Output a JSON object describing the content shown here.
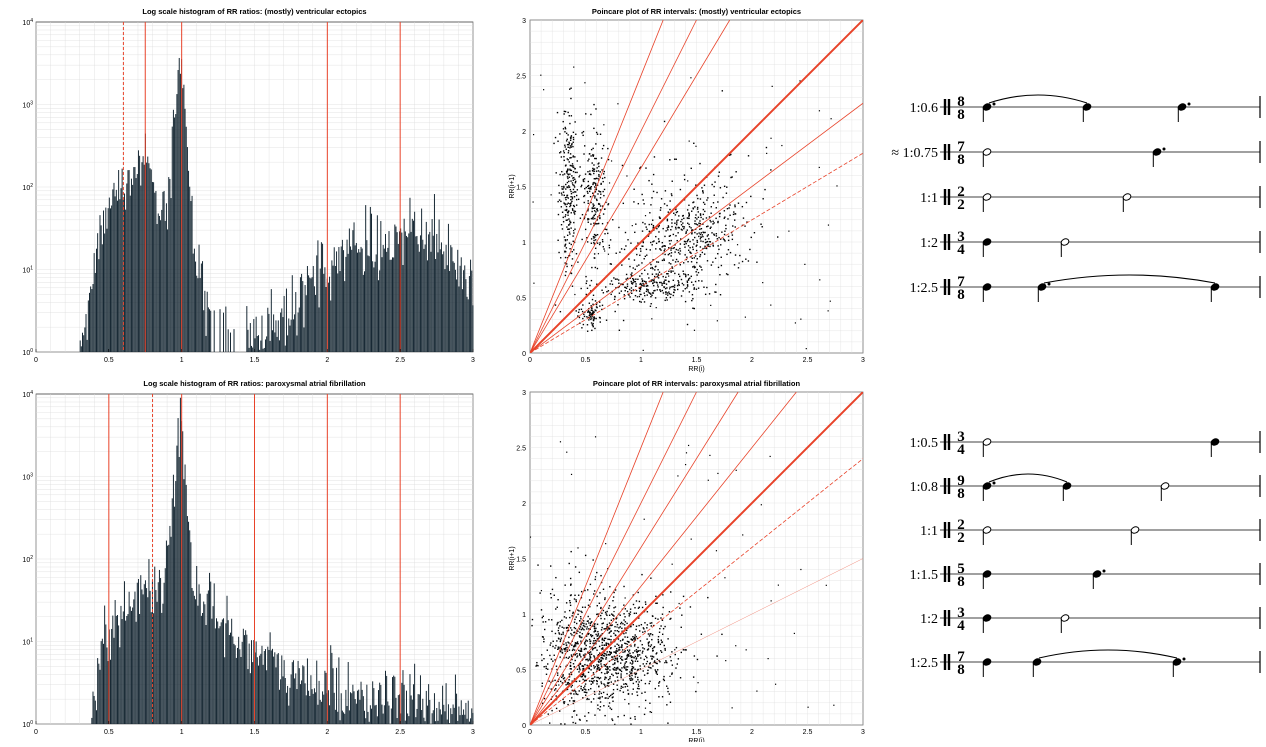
{
  "colors": {
    "bar": "#10222e",
    "ref": "#e8432a",
    "dot": "#000000",
    "grid": "#dcdcdc"
  },
  "chart_data": [
    {
      "type": "bar",
      "title": "Log scale histogram of RR ratios: (mostly) ventricular ectopics",
      "xlabel": "",
      "ylabel": "",
      "xlim": [
        0,
        3
      ],
      "ylog": true,
      "ylim_exp": [
        0,
        4
      ],
      "xticks": [
        "0",
        "0.5",
        "1",
        "1.5",
        "2",
        "2.5",
        "3"
      ],
      "yticks": [
        "10^0",
        "10^1",
        "10^2",
        "10^3",
        "10^4"
      ],
      "ref_lines": [
        {
          "x": 0.6,
          "style": "dashed"
        },
        {
          "x": 0.75,
          "style": "solid"
        },
        {
          "x": 1.0,
          "style": "solid"
        },
        {
          "x": 2.0,
          "style": "solid"
        },
        {
          "x": 2.5,
          "style": "solid"
        }
      ],
      "envelope": [
        [
          0.3,
          1
        ],
        [
          0.35,
          3
        ],
        [
          0.4,
          10
        ],
        [
          0.45,
          40
        ],
        [
          0.5,
          90
        ],
        [
          0.55,
          130
        ],
        [
          0.6,
          110
        ],
        [
          0.65,
          100
        ],
        [
          0.7,
          200
        ],
        [
          0.75,
          250
        ],
        [
          0.8,
          150
        ],
        [
          0.85,
          50
        ],
        [
          0.9,
          60
        ],
        [
          0.93,
          300
        ],
        [
          0.97,
          1500
        ],
        [
          1.0,
          4000
        ],
        [
          1.03,
          500
        ],
        [
          1.07,
          30
        ],
        [
          1.15,
          5
        ],
        [
          1.2,
          3
        ],
        [
          1.3,
          2
        ],
        [
          1.5,
          1.5
        ],
        [
          1.7,
          2
        ],
        [
          1.8,
          4
        ],
        [
          1.9,
          8
        ],
        [
          2.0,
          12
        ],
        [
          2.1,
          15
        ],
        [
          2.2,
          18
        ],
        [
          2.3,
          20
        ],
        [
          2.4,
          22
        ],
        [
          2.5,
          25
        ],
        [
          2.6,
          30
        ],
        [
          2.7,
          25
        ],
        [
          2.8,
          18
        ],
        [
          2.9,
          10
        ],
        [
          3.0,
          5
        ]
      ],
      "bin_width": 0.008,
      "gap": [
        [
          1.2,
          1.45
        ]
      ]
    },
    {
      "type": "scatter",
      "title": "Poincare plot of RR intervals: (mostly) ventricular ectopics",
      "xlabel": "RR(i)",
      "ylabel": "RR(i+1)",
      "xlim": [
        0,
        3
      ],
      "ylim": [
        0,
        3
      ],
      "xticks": [
        "0",
        "0.5",
        "1",
        "1.5",
        "2",
        "2.5",
        "3"
      ],
      "yticks": [
        "0",
        "0.5",
        "1",
        "1.5",
        "2",
        "2.5",
        "3"
      ],
      "ref_slopes": [
        {
          "slope": 1,
          "style": "thick"
        },
        {
          "slope": 1.667,
          "style": "solid"
        },
        {
          "slope": 2,
          "style": "solid"
        },
        {
          "slope": 2.5,
          "style": "solid"
        },
        {
          "slope": 0.6,
          "style": "dashed"
        },
        {
          "slope": 0.75,
          "style": "solid"
        }
      ],
      "clusters": [
        {
          "cx": 0.35,
          "cy": 1.45,
          "sx": 0.04,
          "sy": 0.35,
          "n": 260
        },
        {
          "cx": 0.58,
          "cy": 1.4,
          "sx": 0.05,
          "sy": 0.3,
          "n": 200
        },
        {
          "cx": 1.4,
          "cy": 1.05,
          "sx": 0.3,
          "sy": 0.2,
          "rot": 0.6,
          "n": 420
        },
        {
          "cx": 1.05,
          "cy": 0.6,
          "sx": 0.25,
          "sy": 0.06,
          "n": 200
        },
        {
          "cx": 0.55,
          "cy": 0.35,
          "sx": 0.05,
          "sy": 0.06,
          "n": 80
        },
        {
          "cx": 1.2,
          "cy": 1.0,
          "sx": 0.4,
          "sy": 0.4,
          "n": 180
        }
      ]
    },
    {
      "type": "bar",
      "title": "Log scale histogram of RR ratios: paroxysmal atrial fibrillation",
      "xlabel": "",
      "ylabel": "",
      "xlim": [
        0,
        3
      ],
      "ylog": true,
      "ylim_exp": [
        0,
        4
      ],
      "xticks": [
        "0",
        "0.5",
        "1",
        "1.5",
        "2",
        "2.5",
        "3"
      ],
      "yticks": [
        "10^0",
        "10^1",
        "10^2",
        "10^3",
        "10^4"
      ],
      "ref_lines": [
        {
          "x": 0.5,
          "style": "solid"
        },
        {
          "x": 0.8,
          "style": "dashed"
        },
        {
          "x": 1.0,
          "style": "solid"
        },
        {
          "x": 1.5,
          "style": "solid"
        },
        {
          "x": 2.0,
          "style": "solid"
        },
        {
          "x": 2.5,
          "style": "solid"
        }
      ],
      "envelope": [
        [
          0.38,
          1
        ],
        [
          0.42,
          5
        ],
        [
          0.5,
          15
        ],
        [
          0.6,
          25
        ],
        [
          0.7,
          35
        ],
        [
          0.78,
          50
        ],
        [
          0.82,
          45
        ],
        [
          0.88,
          60
        ],
        [
          0.93,
          300
        ],
        [
          0.97,
          2500
        ],
        [
          1.0,
          5000
        ],
        [
          1.03,
          800
        ],
        [
          1.07,
          60
        ],
        [
          1.15,
          30
        ],
        [
          1.3,
          15
        ],
        [
          1.5,
          8
        ],
        [
          1.7,
          4
        ],
        [
          1.9,
          3
        ],
        [
          2.0,
          3
        ],
        [
          2.3,
          2
        ],
        [
          2.5,
          2
        ],
        [
          2.8,
          1.5
        ],
        [
          3.0,
          1
        ]
      ],
      "bin_width": 0.008,
      "gap": []
    },
    {
      "type": "scatter",
      "title": "Poincare plot of RR intervals: paroxysmal atrial fibrillation",
      "xlabel": "RR(i)",
      "ylabel": "RR(i+1)",
      "xlim": [
        0,
        3
      ],
      "ylim": [
        0,
        3
      ],
      "xticks": [
        "0",
        "0.5",
        "1",
        "1.5",
        "2",
        "2.5",
        "3"
      ],
      "yticks": [
        "0",
        "0.5",
        "1",
        "1.5",
        "2",
        "2.5",
        "3"
      ],
      "ref_slopes": [
        {
          "slope": 1,
          "style": "thick"
        },
        {
          "slope": 1.25,
          "style": "solid"
        },
        {
          "slope": 2,
          "style": "solid"
        },
        {
          "slope": 2.5,
          "style": "solid"
        },
        {
          "slope": 0.8,
          "style": "dashed"
        },
        {
          "slope": 0.5,
          "style": "thin"
        },
        {
          "slope": 1.6,
          "style": "solid"
        }
      ],
      "clusters": [
        {
          "cx": 0.7,
          "cy": 0.65,
          "sx": 0.3,
          "sy": 0.28,
          "rot": 0.78,
          "n": 700
        },
        {
          "cx": 0.45,
          "cy": 0.7,
          "sx": 0.18,
          "sy": 0.35,
          "n": 300
        },
        {
          "cx": 0.8,
          "cy": 0.55,
          "sx": 0.3,
          "sy": 0.18,
          "n": 250
        }
      ]
    }
  ],
  "scores": {
    "top": [
      {
        "ratio": "1:0.6",
        "ts_top": "8",
        "ts_bottom": "8"
      },
      {
        "ratio": "≈ 1:0.75",
        "ts_top": "7",
        "ts_bottom": "8"
      },
      {
        "ratio": "1:1",
        "ts_top": "2",
        "ts_bottom": "2"
      },
      {
        "ratio": "1:2",
        "ts_top": "3",
        "ts_bottom": "4"
      },
      {
        "ratio": "1:2.5",
        "ts_top": "7",
        "ts_bottom": "8"
      }
    ],
    "bottom": [
      {
        "ratio": "1:0.5",
        "ts_top": "3",
        "ts_bottom": "4"
      },
      {
        "ratio": "1:0.8",
        "ts_top": "9",
        "ts_bottom": "8"
      },
      {
        "ratio": "1:1",
        "ts_top": "2",
        "ts_bottom": "2"
      },
      {
        "ratio": "1:1.5",
        "ts_top": "5",
        "ts_bottom": "8"
      },
      {
        "ratio": "1:2",
        "ts_top": "3",
        "ts_bottom": "4"
      },
      {
        "ratio": "1:2.5",
        "ts_top": "7",
        "ts_bottom": "8"
      }
    ]
  }
}
